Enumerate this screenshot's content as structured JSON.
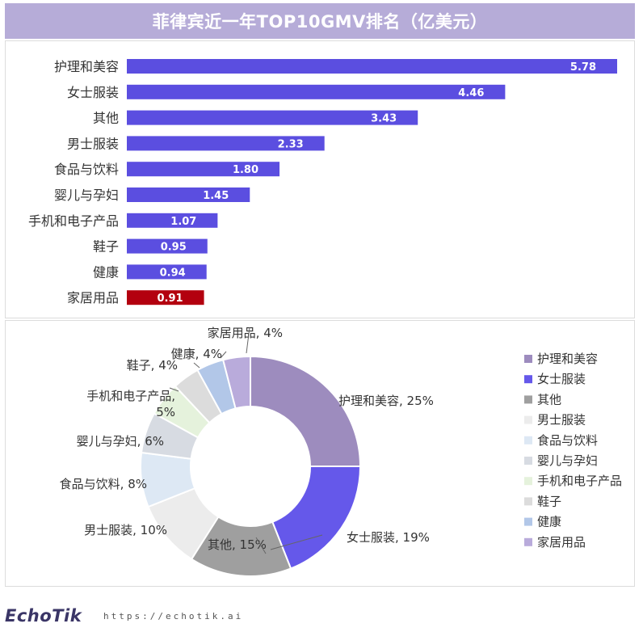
{
  "title": "菲律宾近一年TOP10GMV排名（亿美元）",
  "colors": {
    "title_bg": "#b6acd8",
    "bar": "#5b4ee0",
    "bar_highlight": "#b3000f"
  },
  "chart_data": [
    {
      "type": "bar",
      "orientation": "horizontal",
      "categories": [
        "护理和美容",
        "女士服装",
        "其他",
        "男士服装",
        "食品与饮料",
        "婴儿与孕妇",
        "手机和电子产品",
        "鞋子",
        "健康",
        "家居用品"
      ],
      "values": [
        5.78,
        4.46,
        3.43,
        2.33,
        1.8,
        1.45,
        1.07,
        0.95,
        0.94,
        0.91
      ],
      "value_labels": [
        "5.78",
        "4.46",
        "3.43",
        "2.33",
        "1.80",
        "1.45",
        "1.07",
        "0.95",
        "0.94",
        "0.91"
      ],
      "highlight": "家居用品",
      "xlim": [
        0,
        5.9
      ]
    },
    {
      "type": "pie",
      "donut": true,
      "categories": [
        "护理和美容",
        "女士服装",
        "其他",
        "男士服装",
        "食品与饮料",
        "婴儿与孕妇",
        "手机和电子产品",
        "鞋子",
        "健康",
        "家居用品"
      ],
      "values": [
        25,
        19,
        15,
        10,
        8,
        6,
        5,
        4,
        4,
        4
      ],
      "labels": [
        "护理和美容, 25%",
        "女士服装, 19%",
        "其他, 15%",
        "男士服装, 10%",
        "食品与饮料, 8%",
        "婴儿与孕妇, 6%",
        "手机和电子产品,\n5%",
        "鞋子, 4%",
        "健康, 4%",
        "家居用品, 4%"
      ],
      "colors": [
        "#9d8cbe",
        "#6558ea",
        "#9f9f9f",
        "#ececec",
        "#dde8f4",
        "#d7dbe2",
        "#e5f2dc",
        "#dcdcdc",
        "#b2c7e8",
        "#b9abdb"
      ],
      "legend_position": "right"
    }
  ],
  "footer": {
    "brand": "EchoTik",
    "url": "https://echotik.ai"
  }
}
